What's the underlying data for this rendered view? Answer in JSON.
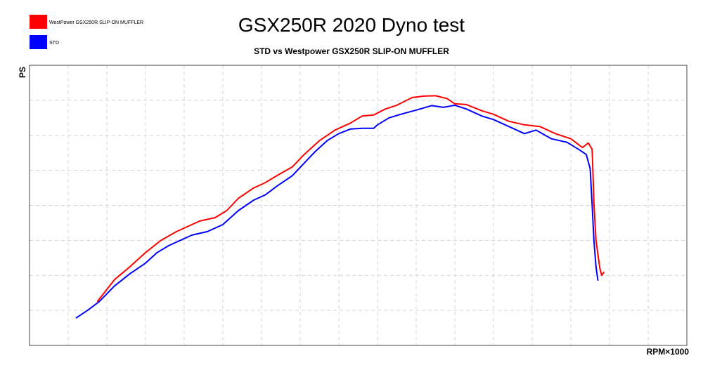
{
  "chart_data": {
    "type": "line",
    "title": "GSX250R 2020 Dyno test",
    "subtitle": "STD vs Westpower GSX250R SLIP-ON MUFFLER",
    "xlabel": "RPM×1000",
    "ylabel": "PS",
    "xlim": [
      0,
      17
    ],
    "ylim": [
      0,
      8
    ],
    "grid": true,
    "legend_position": "top-left",
    "series": [
      {
        "name": "WestPower GSX250R SLIP-ON MUFFLER",
        "color": "#ff0000",
        "x": [
          1.75,
          2.2,
          2.6,
          3.0,
          3.4,
          3.8,
          4.1,
          4.4,
          4.8,
          5.1,
          5.4,
          5.8,
          6.1,
          6.4,
          6.8,
          7.1,
          7.5,
          7.9,
          8.3,
          8.6,
          8.9,
          9.2,
          9.5,
          9.9,
          10.2,
          10.5,
          10.8,
          11.0,
          11.3,
          11.7,
          12.0,
          12.4,
          12.8,
          13.2,
          13.6,
          14.0,
          14.3,
          14.45,
          14.55,
          14.6,
          14.65,
          14.7,
          14.75,
          14.8,
          14.86
        ],
        "y": [
          1.25,
          1.88,
          2.25,
          2.65,
          3.0,
          3.25,
          3.4,
          3.55,
          3.65,
          3.85,
          4.2,
          4.5,
          4.65,
          4.85,
          5.1,
          5.45,
          5.85,
          6.15,
          6.35,
          6.55,
          6.58,
          6.75,
          6.86,
          7.08,
          7.12,
          7.13,
          7.05,
          6.9,
          6.88,
          6.7,
          6.6,
          6.4,
          6.3,
          6.25,
          6.05,
          5.9,
          5.65,
          5.78,
          5.6,
          4.0,
          3.0,
          2.6,
          2.2,
          2.0,
          2.1
        ]
      },
      {
        "name": "STD",
        "color": "#0000ff",
        "x": [
          1.2,
          1.5,
          1.8,
          2.2,
          2.6,
          3.0,
          3.3,
          3.6,
          3.9,
          4.2,
          4.6,
          5.0,
          5.4,
          5.8,
          6.1,
          6.4,
          6.8,
          7.1,
          7.4,
          7.7,
          8.0,
          8.3,
          8.6,
          8.9,
          9.0,
          9.3,
          9.6,
          10.0,
          10.4,
          10.7,
          11.0,
          11.3,
          11.7,
          12.0,
          12.4,
          12.8,
          13.1,
          13.5,
          13.9,
          14.2,
          14.4,
          14.5,
          14.55,
          14.6,
          14.65,
          14.7
        ],
        "y": [
          0.78,
          1.0,
          1.25,
          1.7,
          2.05,
          2.35,
          2.65,
          2.85,
          3.0,
          3.15,
          3.25,
          3.45,
          3.85,
          4.15,
          4.3,
          4.55,
          4.85,
          5.2,
          5.55,
          5.85,
          6.05,
          6.18,
          6.2,
          6.2,
          6.3,
          6.5,
          6.6,
          6.72,
          6.85,
          6.8,
          6.86,
          6.75,
          6.55,
          6.45,
          6.25,
          6.05,
          6.15,
          5.9,
          5.8,
          5.6,
          5.45,
          5.05,
          4.0,
          2.95,
          2.25,
          1.85
        ]
      }
    ]
  }
}
